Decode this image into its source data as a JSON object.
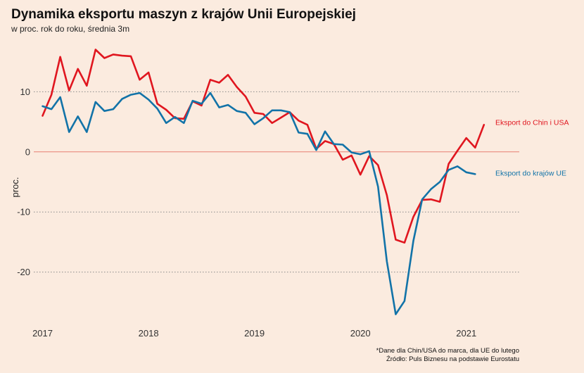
{
  "title": "Dynamika eksportu maszyn z krajów Unii Europejskiej",
  "subtitle": "w proc. rok do roku, średnia 3m",
  "footnote": {
    "line1": "*Dane dla Chin/USA do marca, dla UE do lutego",
    "line2": "Źródło: Puls Biznesu na podstawie Eurostatu"
  },
  "colors": {
    "background": "#fbebdf",
    "chin_usa": "#e0161f",
    "ue": "#1273a8",
    "zero_line": "#e87e72",
    "grid": "#8a8a8a"
  },
  "chart_data": {
    "type": "line",
    "title": "Dynamika eksportu maszyn z krajów Unii Europejskiej",
    "subtitle": "w proc. rok do roku, średnia 3m",
    "xlabel": "",
    "ylabel": "proc.",
    "xlim": [
      "2016-12",
      "2021-07"
    ],
    "ylim": [
      -28,
      18
    ],
    "yticks": [
      10,
      0,
      -10,
      -20
    ],
    "ytick_labels": [
      "10",
      "0",
      "-10",
      "-20"
    ],
    "xtick_labels": [
      "2017",
      "2018",
      "2019",
      "2020",
      "2021"
    ],
    "grid": "horizontal dotted",
    "legend": "line-end labels on the right",
    "series": [
      {
        "name": "Eksport do Chin i USA",
        "color": "#e0161f",
        "dates": [
          "2017-01",
          "2017-02",
          "2017-03",
          "2017-04",
          "2017-05",
          "2017-06",
          "2017-07",
          "2017-08",
          "2017-09",
          "2017-10",
          "2017-11",
          "2017-12",
          "2018-01",
          "2018-02",
          "2018-03",
          "2018-04",
          "2018-05",
          "2018-06",
          "2018-07",
          "2018-08",
          "2018-09",
          "2018-10",
          "2018-11",
          "2018-12",
          "2019-01",
          "2019-02",
          "2019-03",
          "2019-04",
          "2019-05",
          "2019-06",
          "2019-07",
          "2019-08",
          "2019-09",
          "2019-10",
          "2019-11",
          "2019-12",
          "2020-01",
          "2020-02",
          "2020-03",
          "2020-04",
          "2020-05",
          "2020-06",
          "2020-07",
          "2020-08",
          "2020-09",
          "2020-10",
          "2020-11",
          "2020-12",
          "2021-01",
          "2021-02",
          "2021-03"
        ],
        "values": [
          6.0,
          9.5,
          15.8,
          10.2,
          13.8,
          11.0,
          17.0,
          15.6,
          16.2,
          16.0,
          15.9,
          12.0,
          13.2,
          8.0,
          7.0,
          5.6,
          5.5,
          8.4,
          7.7,
          12.0,
          11.5,
          12.8,
          10.8,
          9.2,
          6.5,
          6.3,
          4.8,
          5.7,
          6.6,
          5.2,
          4.5,
          0.5,
          1.8,
          1.3,
          -1.3,
          -0.6,
          -3.8,
          -0.7,
          -2.2,
          -7.2,
          -14.6,
          -15.1,
          -10.8,
          -8.0,
          -7.9,
          -8.3,
          -2.0,
          0.2,
          2.3,
          0.7,
          4.5
        ]
      },
      {
        "name": "Eksport do krajów UE",
        "color": "#1273a8",
        "dates": [
          "2017-01",
          "2017-02",
          "2017-03",
          "2017-04",
          "2017-05",
          "2017-06",
          "2017-07",
          "2017-08",
          "2017-09",
          "2017-10",
          "2017-11",
          "2017-12",
          "2018-01",
          "2018-02",
          "2018-03",
          "2018-04",
          "2018-05",
          "2018-06",
          "2018-07",
          "2018-08",
          "2018-09",
          "2018-10",
          "2018-11",
          "2018-12",
          "2019-01",
          "2019-02",
          "2019-03",
          "2019-04",
          "2019-05",
          "2019-06",
          "2019-07",
          "2019-08",
          "2019-09",
          "2019-10",
          "2019-11",
          "2019-12",
          "2020-01",
          "2020-02",
          "2020-03",
          "2020-04",
          "2020-05",
          "2020-06",
          "2020-07",
          "2020-08",
          "2020-09",
          "2020-10",
          "2020-11",
          "2020-12",
          "2021-01",
          "2021-02"
        ],
        "values": [
          7.6,
          7.1,
          9.1,
          3.3,
          5.9,
          3.3,
          8.3,
          6.8,
          7.1,
          8.8,
          9.5,
          9.8,
          8.7,
          7.2,
          4.8,
          5.8,
          4.8,
          8.5,
          8.0,
          9.8,
          7.4,
          7.8,
          6.8,
          6.5,
          4.6,
          5.6,
          6.9,
          6.9,
          6.6,
          3.2,
          3.0,
          0.3,
          3.4,
          1.3,
          1.2,
          -0.1,
          -0.4,
          0.1,
          -5.8,
          -18.2,
          -27.0,
          -24.8,
          -14.8,
          -7.9,
          -6.2,
          -5.0,
          -3.0,
          -2.4,
          -3.4,
          -3.7
        ]
      }
    ]
  }
}
